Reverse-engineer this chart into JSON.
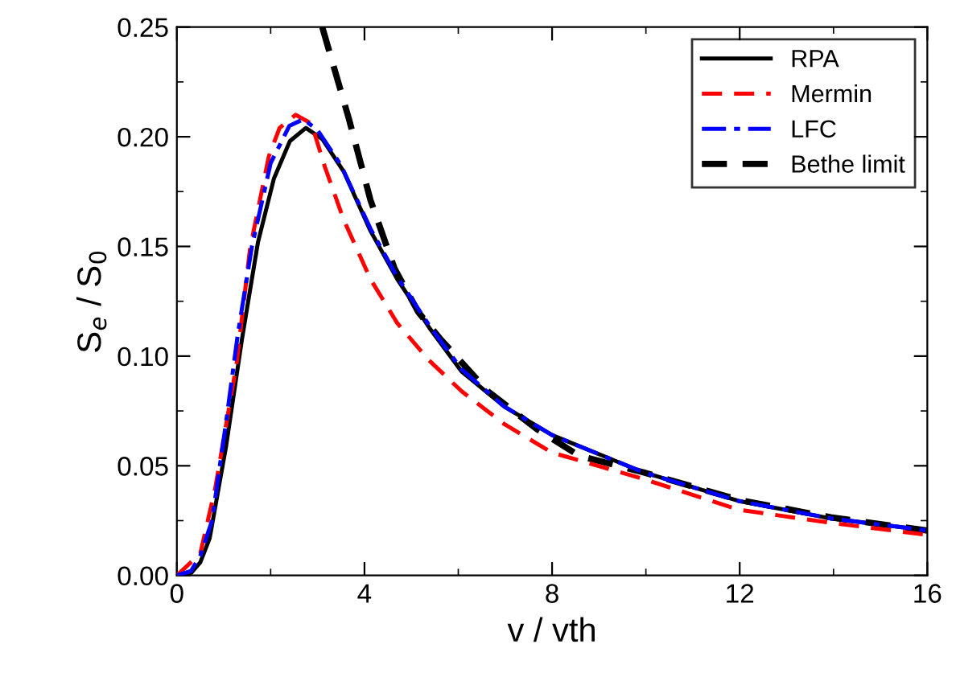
{
  "chart_data": {
    "type": "line",
    "xlabel": "v / vth",
    "ylabel": "S$_{e}$ / S$_{0}$",
    "xlim": [
      0,
      16
    ],
    "ylim": [
      0,
      0.25
    ],
    "xticks": [
      0,
      {
        "value": 2,
        "label": null
      },
      4,
      {
        "value": 6,
        "label": null
      },
      8,
      {
        "value": 10,
        "label": null
      },
      12,
      {
        "value": 14,
        "label": null
      },
      16
    ],
    "yticks": [
      {
        "value": 0,
        "label": "0.00"
      },
      {
        "value": 0.025,
        "label": null
      },
      {
        "value": 0.05,
        "label": "0.05"
      },
      {
        "value": 0.075,
        "label": null
      },
      {
        "value": 0.1,
        "label": "0.10"
      },
      {
        "value": 0.125,
        "label": null
      },
      {
        "value": 0.15,
        "label": "0.15"
      },
      {
        "value": 0.175,
        "label": null
      },
      {
        "value": 0.2,
        "label": "0.20"
      },
      {
        "value": 0.225,
        "label": null
      },
      {
        "value": 0.25,
        "label": "0.25"
      }
    ],
    "grid": false,
    "legend": "top right",
    "marker": "none",
    "series": [
      {
        "name": "RPA",
        "color": "#000000",
        "line_style": "solid",
        "x": [
          0,
          0.3,
          0.5,
          0.7,
          1.05,
          1.39,
          1.73,
          2.07,
          2.41,
          2.75,
          3.1,
          3.56,
          4.13,
          4.7,
          5.38,
          6.07,
          6.98,
          8.0,
          9.95,
          11.97,
          13.94,
          16
        ],
        "values": [
          0,
          0.001,
          0.006,
          0.017,
          0.059,
          0.108,
          0.152,
          0.181,
          0.198,
          0.204,
          0.199,
          0.184,
          0.157,
          0.135,
          0.113,
          0.093,
          0.077,
          0.064,
          0.047,
          0.034,
          0.026,
          0.0205
        ]
      },
      {
        "name": "Mermin",
        "color": "#ff0000",
        "line_style": "dashed",
        "x": [
          0,
          0.5,
          0.82,
          1.27,
          1.56,
          1.96,
          2.19,
          2.53,
          2.87,
          3.16,
          3.56,
          4.13,
          4.7,
          5.38,
          6.07,
          6.98,
          8.0,
          9.95,
          11.97,
          13.94,
          16
        ],
        "values": [
          0,
          0.01,
          0.04,
          0.096,
          0.149,
          0.191,
          0.204,
          0.21,
          0.206,
          0.186,
          0.162,
          0.135,
          0.115,
          0.098,
          0.084,
          0.069,
          0.056,
          0.044,
          0.03,
          0.024,
          0.0185
        ]
      },
      {
        "name": "LFC",
        "color": "#0000ff",
        "line_style": "dashdot",
        "x": [
          0,
          0.3,
          0.5,
          0.75,
          1.05,
          1.3,
          1.6,
          2.0,
          2.4,
          2.7,
          3.0,
          3.5,
          4.13,
          4.7,
          5.38,
          6.07,
          6.98,
          8.0,
          9.95,
          11.97,
          13.94,
          16
        ],
        "values": [
          0,
          0.002,
          0.009,
          0.025,
          0.07,
          0.11,
          0.15,
          0.188,
          0.205,
          0.208,
          0.203,
          0.187,
          0.158,
          0.136,
          0.114,
          0.094,
          0.077,
          0.064,
          0.047,
          0.034,
          0.026,
          0.0205
        ]
      },
      {
        "name": "Bethe limit",
        "color": "#000000",
        "line_style": "dashed",
        "x": [
          3.1,
          3.67,
          4.13,
          4.64,
          5.15,
          5.61,
          6.64,
          7.67,
          8.58,
          9.95,
          11.97,
          13.94,
          16
        ],
        "values": [
          0.25,
          0.208,
          0.171,
          0.14,
          0.12,
          0.108,
          0.0838,
          0.0668,
          0.0545,
          0.047,
          0.0345,
          0.0265,
          0.0205
        ]
      }
    ]
  }
}
